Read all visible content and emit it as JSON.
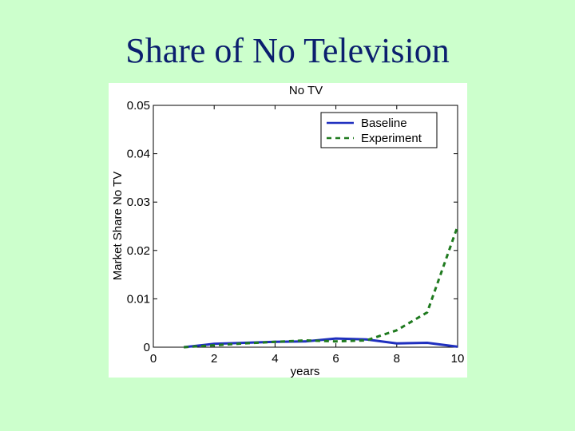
{
  "slide": {
    "title": "Share of No Television"
  },
  "chart_data": {
    "type": "line",
    "title": "No TV",
    "xlabel": "years",
    "ylabel": "Market Share No TV",
    "xlim": [
      0,
      10
    ],
    "ylim": [
      0,
      0.05
    ],
    "xticks": [
      0,
      2,
      4,
      6,
      8,
      10
    ],
    "yticks": [
      0,
      0.01,
      0.02,
      0.03,
      0.04,
      0.05
    ],
    "ytick_labels": [
      "0",
      "0.01",
      "0.02",
      "0.03",
      "0.04",
      "0.05"
    ],
    "grid": false,
    "legend_position": "top-right",
    "series": [
      {
        "name": "Baseline",
        "style": "solid",
        "color": "#1f2fbf",
        "x": [
          1,
          2,
          3,
          4,
          5,
          6,
          7,
          8,
          9,
          10
        ],
        "y": [
          0,
          0.0007,
          0.0009,
          0.0011,
          0.0012,
          0.0018,
          0.0016,
          0.0008,
          0.0009,
          0.0001
        ]
      },
      {
        "name": "Experiment",
        "style": "dashed",
        "color": "#1f7a1f",
        "x": [
          1,
          2,
          3,
          4,
          5,
          6,
          7,
          8,
          9,
          10
        ],
        "y": [
          0,
          0.0004,
          0.0008,
          0.0011,
          0.0014,
          0.0012,
          0.0014,
          0.0035,
          0.0072,
          0.025
        ]
      }
    ]
  }
}
